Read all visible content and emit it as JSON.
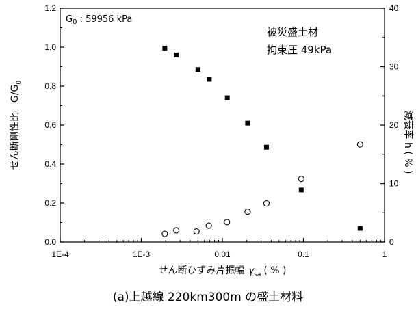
{
  "chart_data": {
    "type": "scatter",
    "x_scale": "log",
    "xlim": [
      0.0001,
      1
    ],
    "ylim": [
      0,
      1.2
    ],
    "y2lim": [
      0,
      40
    ],
    "x_ticks": [
      "1E-4",
      "1E-3",
      "0.01",
      "0.1",
      "1"
    ],
    "y_ticks": [
      "0.0",
      "0.2",
      "0.4",
      "0.6",
      "0.8",
      "1.0",
      "1.2"
    ],
    "y2_ticks": [
      "0",
      "10",
      "20",
      "30",
      "40"
    ],
    "grid": false,
    "xlabel_prefix": "せん断ひずみ片振幅",
    "xlabel_symbol": "γ",
    "xlabel_sub": "sa",
    "xlabel_unit": "( % )",
    "ylabel": "せん断剛性比　G/G",
    "ylabel_sub": "0",
    "y2label": "減衰率 h ( % )",
    "annotations": {
      "g0_prefix": "G",
      "g0_sub": "0",
      "g0_value": " : 59956 kPa",
      "material": "被災盛土材",
      "pressure": "拘束圧 49kPa"
    },
    "caption": "(a)上越線 220km300m の盛土材料",
    "series": [
      {
        "axis": "left",
        "marker": "filled-square",
        "x": [
          0.00195,
          0.0027,
          0.005,
          0.0069,
          0.0115,
          0.0205,
          0.035,
          0.094,
          0.5
        ],
        "y": [
          0.995,
          0.96,
          0.885,
          0.835,
          0.74,
          0.61,
          0.487,
          0.267,
          0.07
        ]
      },
      {
        "axis": "right",
        "marker": "open-circle",
        "x": [
          0.00195,
          0.0027,
          0.0048,
          0.0068,
          0.0114,
          0.0205,
          0.035,
          0.094,
          0.5
        ],
        "y": [
          1.4,
          2.0,
          1.8,
          2.8,
          3.4,
          5.2,
          6.6,
          10.8,
          16.7
        ]
      }
    ]
  }
}
